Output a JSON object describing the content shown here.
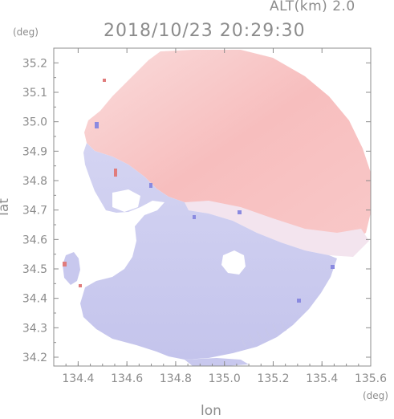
{
  "header": {
    "altitude": "ALT(km) 2.0",
    "timestamp": "2018/10/23 20:29:30"
  },
  "chart_data": {
    "type": "heatmap",
    "title": "2018/10/23 20:29:30",
    "subtitle": "ALT(km) 2.0",
    "xlabel": "lon",
    "ylabel": "lat",
    "x_unit": "(deg)",
    "y_unit": "(deg)",
    "xlim": [
      134.3,
      135.6
    ],
    "ylim": [
      34.17,
      35.25
    ],
    "x_ticks": [
      134.4,
      134.6,
      134.8,
      135.0,
      135.2,
      135.4,
      135.6
    ],
    "x_tick_labels": [
      "134.4",
      "134.6",
      "134.8",
      "135.0",
      "135.2",
      "135.4",
      "135.6"
    ],
    "y_ticks": [
      34.2,
      34.3,
      34.4,
      34.5,
      34.6,
      34.7,
      34.8,
      34.9,
      35.0,
      35.1,
      35.2
    ],
    "y_tick_labels": [
      "34.2",
      "34.3",
      "34.4",
      "34.5",
      "34.6",
      "34.7",
      "34.8",
      "34.9",
      "35.0",
      "35.1",
      "35.2"
    ],
    "colors": {
      "positive": "#f7bcbc",
      "negative": "#c6c6ef",
      "axis": "#8c8c8c"
    }
  }
}
